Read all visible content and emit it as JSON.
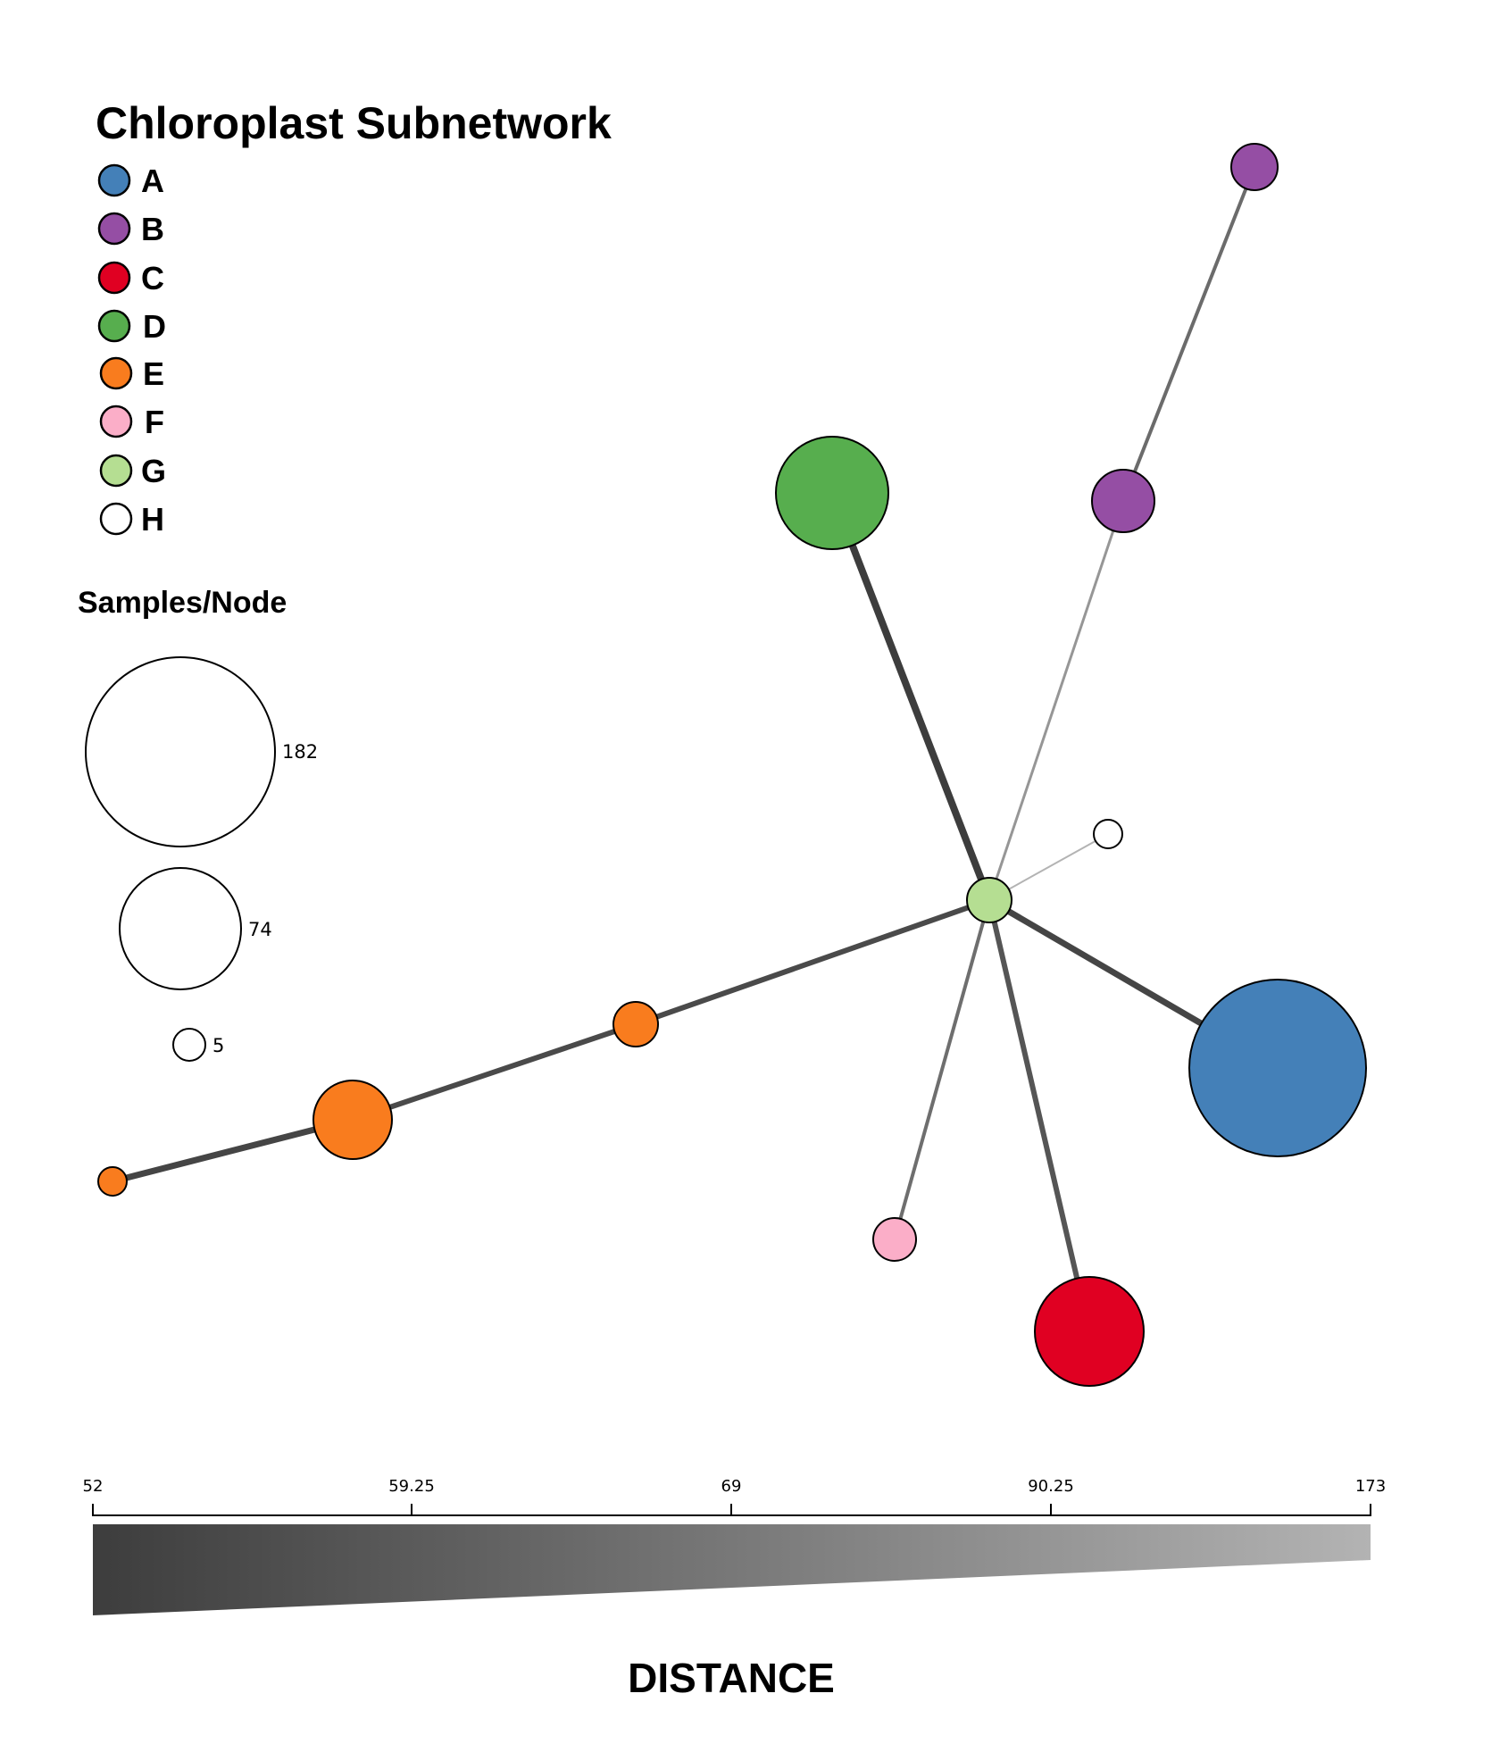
{
  "title": "Chloroplast Subnetwork",
  "legend": [
    {
      "label": "A",
      "color": "#4480b8"
    },
    {
      "label": "B",
      "color": "#954ea4"
    },
    {
      "label": "C",
      "color": "#e00022"
    },
    {
      "label": "D",
      "color": "#57ae4e"
    },
    {
      "label": "E",
      "color": "#f97c1e"
    },
    {
      "label": "F",
      "color": "#fbaec8"
    },
    {
      "label": "G",
      "color": "#b5de92"
    },
    {
      "label": "H",
      "color": "#ffffff"
    }
  ],
  "size_legend": {
    "title": "Samples/Node",
    "sizes": [
      {
        "label": "182",
        "value": 182
      },
      {
        "label": "74",
        "value": 74
      },
      {
        "label": "5",
        "value": 5
      }
    ]
  },
  "distance_scale": {
    "title": "DISTANCE",
    "ticks": [
      "52",
      "59.25",
      "69",
      "90.25",
      "173"
    ],
    "gradient_dark": "#3d3d3d",
    "gradient_light": "#b3b3b3"
  },
  "network": {
    "hub": "G",
    "nodes": [
      {
        "id": "G-hub",
        "group": "G",
        "samples": 5
      },
      {
        "id": "D-1",
        "group": "D",
        "samples": 74
      },
      {
        "id": "B-1",
        "group": "B",
        "samples": 20
      },
      {
        "id": "B-2",
        "group": "B",
        "samples": 10
      },
      {
        "id": "H-1",
        "group": "H",
        "samples": 3
      },
      {
        "id": "A-1",
        "group": "A",
        "samples": 182
      },
      {
        "id": "C-1",
        "group": "C",
        "samples": 60
      },
      {
        "id": "F-1",
        "group": "F",
        "samples": 8
      },
      {
        "id": "E-1",
        "group": "E",
        "samples": 10
      },
      {
        "id": "E-2",
        "group": "E",
        "samples": 32
      },
      {
        "id": "E-3",
        "group": "E",
        "samples": 4
      }
    ],
    "edges": [
      {
        "from": "G-hub",
        "to": "D-1",
        "distance": 52
      },
      {
        "from": "G-hub",
        "to": "B-1",
        "distance": 120
      },
      {
        "from": "B-1",
        "to": "B-2",
        "distance": 85
      },
      {
        "from": "G-hub",
        "to": "H-1",
        "distance": 173
      },
      {
        "from": "G-hub",
        "to": "A-1",
        "distance": 58
      },
      {
        "from": "G-hub",
        "to": "C-1",
        "distance": 68
      },
      {
        "from": "G-hub",
        "to": "F-1",
        "distance": 85
      },
      {
        "from": "G-hub",
        "to": "E-1",
        "distance": 59
      },
      {
        "from": "E-1",
        "to": "E-2",
        "distance": 59
      },
      {
        "from": "E-2",
        "to": "E-3",
        "distance": 55
      }
    ]
  }
}
